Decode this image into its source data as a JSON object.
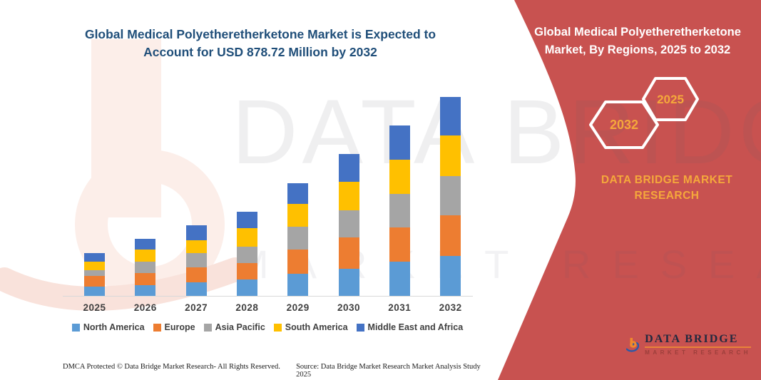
{
  "colors": {
    "panel_red": "#C85250",
    "title_navy": "#1F4E79",
    "accent_orange": "#F5A83B",
    "axis_gray": "#d9d9d9",
    "label_gray": "#404040"
  },
  "chart_header": {
    "lines": [
      "Global Medical Polyetheretherketone Market is Expected to",
      "Account for USD 878.72 Million by 2032"
    ]
  },
  "chart_data": {
    "type": "bar",
    "stacked": true,
    "unit": "USD Million",
    "categories": [
      "2025",
      "2026",
      "2027",
      "2028",
      "2029",
      "2030",
      "2031",
      "2032"
    ],
    "series": [
      {
        "name": "North America",
        "color": "#5B9BD5",
        "values": [
          42,
          47,
          61,
          73,
          97,
          121,
          151,
          175
        ]
      },
      {
        "name": "Europe",
        "color": "#ED7D31",
        "values": [
          47,
          53,
          65,
          73,
          108,
          136,
          152,
          182
        ]
      },
      {
        "name": "Asia Pacific",
        "color": "#A5A5A5",
        "values": [
          26,
          53,
          63,
          72,
          100,
          121,
          147,
          173
        ]
      },
      {
        "name": "South America",
        "color": "#FFC000",
        "values": [
          37,
          53,
          58,
          81,
          100,
          126,
          152,
          179
        ]
      },
      {
        "name": "Middle East and Africa",
        "color": "#4472C4",
        "values": [
          37,
          47,
          65,
          73,
          91,
          124,
          151,
          170
        ]
      }
    ],
    "totals": [
      189,
      253,
      312,
      372,
      496,
      628,
      753,
      879
    ],
    "title": "Global Medical Polyetheretherketone Market is Expected to Account for USD 878.72 Million by 2032",
    "xlabel": "",
    "ylabel": "",
    "y_axis_shown": false,
    "grid": false,
    "legend_position": "bottom"
  },
  "right_panel": {
    "heading_lines": [
      "Global Medical Polyetheretherketone",
      "Market, By Regions, 2025 to 2032"
    ],
    "badge_back": "2032",
    "badge_front": "2025",
    "caption_lines": [
      "DATA BRIDGE MARKET",
      "RESEARCH"
    ],
    "logo": {
      "brand": "DATA BRIDGE",
      "sub": "MARKET RESEARCH"
    }
  },
  "watermark": {
    "line1": "DATA BRIDGE",
    "line2": "MARKET RESEARCH"
  },
  "footer": {
    "dmca": "DMCA Protected © Data Bridge Market Research-  All Rights Reserved.",
    "source": "Source: Data Bridge Market Research  Market Analysis Study 2025"
  }
}
